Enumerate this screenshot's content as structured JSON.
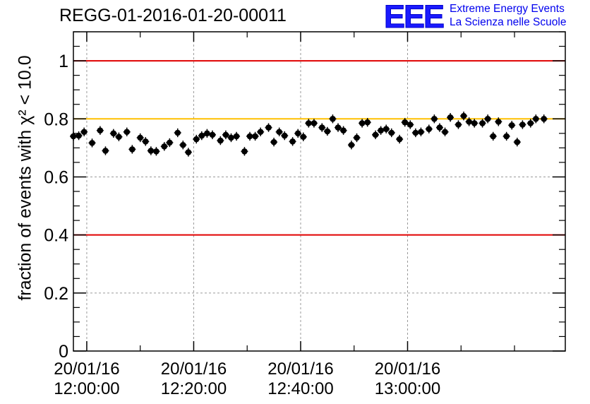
{
  "header": {
    "title": "REGG-01-2016-01-20-00011",
    "logo_letters": "EEE",
    "logo_line1": "Extreme Energy Events",
    "logo_line2": "La Scienza nelle Scuole",
    "logo_color": "#1a1aff"
  },
  "chart_data": {
    "type": "scatter",
    "title": "REGG-01-2016-01-20-00011",
    "ylabel": "fraction of events with χ² < 10.0",
    "xlabel": "",
    "x_axis": {
      "type": "time",
      "min": "2016-01-20 11:57:30",
      "max": "2016-01-20 13:29:30"
    },
    "ylim": [
      0,
      1.1
    ],
    "yticks": [
      0,
      0.2,
      0.4,
      0.6,
      0.8,
      1
    ],
    "yticklabels": [
      "0",
      "0.2",
      "0.4",
      "0.6",
      "0.8",
      "1"
    ],
    "xticks": [
      "12:00:00",
      "12:20:00",
      "12:40:00",
      "13:00:00"
    ],
    "xtick_labels": [
      [
        "20/01/16",
        "12:00:00"
      ],
      [
        "20/01/16",
        "12:20:00"
      ],
      [
        "20/01/16",
        "12:40:00"
      ],
      [
        "20/01/16",
        "13:00:00"
      ]
    ],
    "grid": true,
    "reference_lines": [
      {
        "y": 1.0,
        "color": "#e00000"
      },
      {
        "y": 0.8,
        "color": "#ffc000"
      },
      {
        "y": 0.4,
        "color": "#e00000"
      }
    ],
    "series": [
      {
        "marker": "circle",
        "color": "#000000",
        "error_y": 0.015,
        "points": [
          [
            "11:57:30",
            0.74
          ],
          [
            "11:58:30",
            0.742
          ],
          [
            "11:59:30",
            0.755
          ],
          [
            "12:01:00",
            0.717
          ],
          [
            "12:02:30",
            0.76
          ],
          [
            "12:03:30",
            0.69
          ],
          [
            "12:05:00",
            0.75
          ],
          [
            "12:06:00",
            0.738
          ],
          [
            "12:07:30",
            0.755
          ],
          [
            "12:08:30",
            0.695
          ],
          [
            "12:10:00",
            0.735
          ],
          [
            "12:11:00",
            0.722
          ],
          [
            "12:12:00",
            0.69
          ],
          [
            "12:13:00",
            0.688
          ],
          [
            "12:14:30",
            0.705
          ],
          [
            "12:15:30",
            0.718
          ],
          [
            "12:17:00",
            0.752
          ],
          [
            "12:18:00",
            0.71
          ],
          [
            "12:19:00",
            0.685
          ],
          [
            "12:20:30",
            0.73
          ],
          [
            "12:21:30",
            0.742
          ],
          [
            "12:22:30",
            0.75
          ],
          [
            "12:23:30",
            0.745
          ],
          [
            "12:25:00",
            0.725
          ],
          [
            "12:26:00",
            0.745
          ],
          [
            "12:27:00",
            0.735
          ],
          [
            "12:28:00",
            0.74
          ],
          [
            "12:29:30",
            0.688
          ],
          [
            "12:30:30",
            0.74
          ],
          [
            "12:31:30",
            0.74
          ],
          [
            "12:32:30",
            0.755
          ],
          [
            "12:34:00",
            0.77
          ],
          [
            "12:35:00",
            0.72
          ],
          [
            "12:36:00",
            0.755
          ],
          [
            "12:37:00",
            0.742
          ],
          [
            "12:38:30",
            0.722
          ],
          [
            "12:39:30",
            0.75
          ],
          [
            "12:40:30",
            0.738
          ],
          [
            "12:41:30",
            0.785
          ],
          [
            "12:42:30",
            0.785
          ],
          [
            "12:44:00",
            0.77
          ],
          [
            "12:45:00",
            0.757
          ],
          [
            "12:46:00",
            0.8
          ],
          [
            "12:47:00",
            0.77
          ],
          [
            "12:48:00",
            0.76
          ],
          [
            "12:49:30",
            0.71
          ],
          [
            "12:50:30",
            0.735
          ],
          [
            "12:51:30",
            0.785
          ],
          [
            "12:52:30",
            0.788
          ],
          [
            "12:54:00",
            0.745
          ],
          [
            "12:55:00",
            0.76
          ],
          [
            "12:56:00",
            0.765
          ],
          [
            "12:57:00",
            0.752
          ],
          [
            "12:58:30",
            0.73
          ],
          [
            "12:59:30",
            0.788
          ],
          [
            "13:00:30",
            0.78
          ],
          [
            "13:01:30",
            0.752
          ],
          [
            "13:02:30",
            0.755
          ],
          [
            "13:04:00",
            0.765
          ],
          [
            "13:05:00",
            0.8
          ],
          [
            "13:06:00",
            0.77
          ],
          [
            "13:07:00",
            0.755
          ],
          [
            "13:08:00",
            0.805
          ],
          [
            "13:09:30",
            0.78
          ],
          [
            "13:10:30",
            0.81
          ],
          [
            "13:11:30",
            0.79
          ],
          [
            "13:12:30",
            0.785
          ],
          [
            "13:14:00",
            0.785
          ],
          [
            "13:15:00",
            0.8
          ],
          [
            "13:16:00",
            0.74
          ],
          [
            "13:17:00",
            0.79
          ],
          [
            "13:18:30",
            0.74
          ],
          [
            "13:19:30",
            0.778
          ],
          [
            "13:20:30",
            0.72
          ],
          [
            "13:21:30",
            0.78
          ],
          [
            "13:23:00",
            0.785
          ],
          [
            "13:24:00",
            0.8
          ],
          [
            "13:25:30",
            0.8
          ]
        ]
      }
    ]
  }
}
